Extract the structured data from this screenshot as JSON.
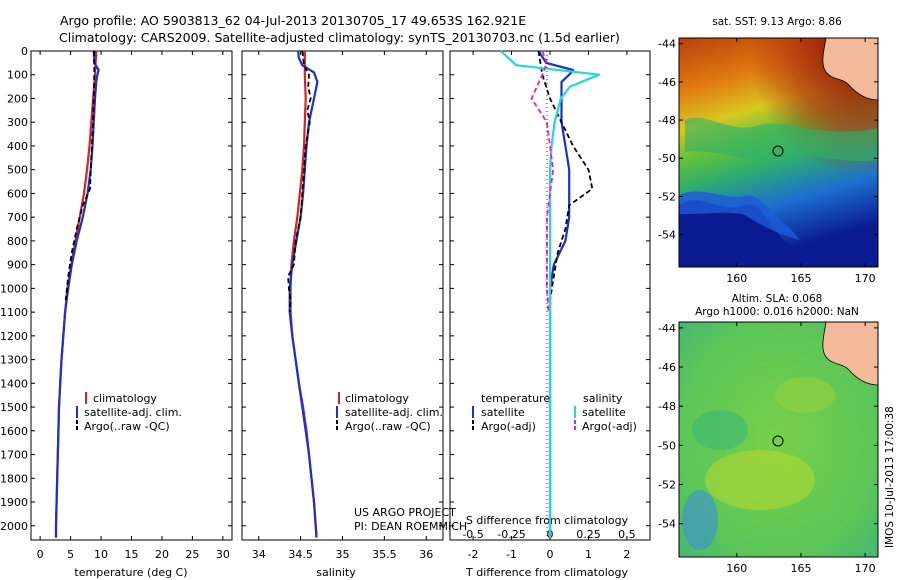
{
  "header": {
    "line1": "Argo profile: AO 5903813_62 04-Jul-2013 20130705_17 49.653S 162.921E",
    "line2": "Climatology: CARS2009. Satellite-adjusted climatology: synTS_20130703.nc (1.5d earlier)"
  },
  "colors": {
    "clim": "#e0201b",
    "sat": "#1a2fd6",
    "argo": "#000000",
    "sal_sat": "#22d8d8",
    "sal_argo": "#e020d8",
    "land": "#f2b99a"
  },
  "credits": {
    "project": "US ARGO PROJECT",
    "pi": "PI: DEAN ROEMMICH",
    "stamp": "IMOS 10-Jul-2013 17:00:38"
  },
  "chart_data": [
    {
      "type": "line",
      "name": "temperature",
      "xlabel": "temperature (deg C)",
      "xticks": [
        "0",
        "5",
        "10",
        "15",
        "20",
        "25",
        "30"
      ],
      "xlim": [
        -1.5,
        31.5
      ],
      "ylim": [
        0,
        2060
      ],
      "yreversed": true,
      "yticks": [
        "0",
        "100",
        "200",
        "300",
        "400",
        "500",
        "600",
        "700",
        "800",
        "900",
        "1000",
        "1100",
        "1200",
        "1300",
        "1400",
        "1500",
        "1600",
        "1700",
        "1800",
        "1900",
        "2000"
      ],
      "legend": [
        "climatology",
        "satellite-adj. clim.",
        "Argo(..raw -QC)"
      ],
      "series": [
        {
          "name": "climatology",
          "depth": [
            0,
            100,
            200,
            300,
            400,
            500,
            600,
            700,
            800,
            900,
            1000,
            1100,
            1200,
            1300,
            1400,
            1500,
            1600,
            1700,
            1800,
            1900,
            2000,
            2050
          ],
          "values": [
            9.2,
            9.0,
            8.7,
            8.4,
            8.1,
            7.7,
            7.2,
            6.5,
            5.8,
            5.1,
            4.5,
            4.1,
            3.8,
            3.5,
            3.3,
            3.1,
            3.0,
            2.9,
            2.8,
            2.7,
            2.6,
            2.6
          ]
        },
        {
          "name": "satellite-adj. clim.",
          "depth": [
            0,
            50,
            80,
            100,
            130,
            200,
            300,
            400,
            500,
            600,
            700,
            800,
            900,
            1000,
            1100,
            1200,
            1300,
            1400,
            1500,
            1600,
            1700,
            1800,
            1900,
            2000,
            2050
          ],
          "values": [
            8.8,
            8.9,
            9.6,
            9.4,
            9.2,
            9.0,
            8.8,
            8.6,
            8.3,
            7.8,
            7.0,
            6.0,
            5.2,
            4.6,
            4.1,
            3.8,
            3.5,
            3.3,
            3.1,
            3.0,
            2.9,
            2.8,
            2.7,
            2.6,
            2.6
          ]
        },
        {
          "name": "Argo(..raw -QC)",
          "depth": [
            0,
            100,
            200,
            300,
            400,
            500,
            580,
            650,
            750,
            850,
            950,
            1050
          ],
          "values": [
            8.9,
            8.9,
            8.8,
            8.7,
            8.5,
            8.3,
            8.2,
            7.0,
            6.0,
            5.2,
            4.6,
            4.2
          ]
        }
      ]
    },
    {
      "type": "line",
      "name": "salinity",
      "xlabel": "salinity",
      "xticks": [
        "34",
        "34.5",
        "35",
        "35.5",
        "36"
      ],
      "xlim": [
        33.8,
        36.2
      ],
      "ylim": [
        0,
        2060
      ],
      "yreversed": true,
      "legend": [
        "climatology",
        "satellite-adj. clim.",
        "Argo(..raw -QC)"
      ],
      "series": [
        {
          "name": "climatology",
          "depth": [
            0,
            100,
            200,
            300,
            400,
            500,
            600,
            700,
            800,
            900,
            1000,
            1100,
            1200,
            1300,
            1400,
            1500,
            1600,
            1700,
            1800,
            1900,
            2000,
            2050
          ],
          "values": [
            34.55,
            34.55,
            34.56,
            34.55,
            34.54,
            34.52,
            34.49,
            34.46,
            34.42,
            34.39,
            34.38,
            34.38,
            34.4,
            34.44,
            34.48,
            34.53,
            34.57,
            34.6,
            34.63,
            34.66,
            34.68,
            34.69
          ]
        },
        {
          "name": "satellite-adj. clim.",
          "depth": [
            0,
            30,
            60,
            90,
            130,
            200,
            300,
            400,
            500,
            600,
            700,
            800,
            900,
            1000,
            1100,
            1200,
            1300,
            1400,
            1500,
            1600,
            1700,
            1800,
            1900,
            2000,
            2050
          ],
          "values": [
            34.47,
            34.48,
            34.52,
            34.66,
            34.7,
            34.66,
            34.6,
            34.57,
            34.55,
            34.53,
            34.5,
            34.45,
            34.4,
            34.37,
            34.37,
            34.4,
            34.44,
            34.48,
            34.52,
            34.56,
            34.6,
            34.63,
            34.66,
            34.68,
            34.69
          ]
        },
        {
          "name": "Argo(..raw -QC)",
          "depth": [
            0,
            60,
            100,
            150,
            200,
            250,
            300,
            400,
            500,
            600,
            700,
            800,
            900,
            950,
            1000,
            1050,
            1100
          ],
          "values": [
            34.52,
            34.54,
            34.6,
            34.59,
            34.62,
            34.58,
            34.61,
            34.56,
            34.54,
            34.52,
            34.5,
            34.44,
            34.42,
            34.35,
            34.36,
            34.38,
            34.37
          ]
        }
      ]
    },
    {
      "type": "line",
      "name": "difference from climatology",
      "xlabel": "T difference from climatology",
      "x2label": "S difference from climatology",
      "xticks": [
        "-2",
        "-1",
        "0",
        "1",
        "2"
      ],
      "x2ticks": [
        "-0.5",
        "-0.25",
        "0",
        "0.25",
        "0.5"
      ],
      "xlim": [
        -2.6,
        2.6
      ],
      "ylim": [
        0,
        2060
      ],
      "yreversed": true,
      "legend_left_title": "temperature",
      "legend_right_title": "salinity",
      "legend_left": [
        "satellite",
        "Argo(-adj)"
      ],
      "legend_right": [
        "satellite",
        "Argo(-adj)"
      ],
      "series": [
        {
          "name": "T satellite",
          "depth": [
            0,
            50,
            80,
            100,
            130,
            200,
            300,
            400,
            500,
            600,
            700,
            800,
            900,
            1000,
            1200,
            1400,
            1600,
            1800,
            2000,
            2050
          ],
          "values": [
            -0.3,
            -0.1,
            0.6,
            0.5,
            0.3,
            0.3,
            0.3,
            0.4,
            0.5,
            0.5,
            0.5,
            0.4,
            0.1,
            0.0,
            0.0,
            0.0,
            0.0,
            0.0,
            0.0,
            0.0
          ]
        },
        {
          "name": "T Argo(-adj)",
          "depth": [
            0,
            100,
            200,
            300,
            400,
            500,
            580,
            650,
            750,
            850,
            950,
            1050
          ],
          "values": [
            -0.3,
            -0.2,
            0.0,
            0.3,
            0.6,
            1.0,
            1.1,
            0.5,
            0.4,
            0.2,
            0.1,
            0.0
          ]
        },
        {
          "name": "S satellite",
          "depth": [
            0,
            60,
            100,
            150,
            200,
            300,
            400,
            500,
            600,
            800,
            1000,
            1200,
            1400,
            1600,
            1800,
            2000,
            2050
          ],
          "values": [
            -0.32,
            -0.22,
            0.32,
            0.13,
            0.07,
            0.03,
            0.01,
            0.0,
            0.0,
            0.0,
            0.0,
            0.0,
            0.0,
            0.0,
            0.0,
            0.0,
            0.0
          ]
        },
        {
          "name": "S Argo(-adj)",
          "depth": [
            0,
            50,
            100,
            200,
            300,
            400,
            500,
            600,
            700,
            800,
            900,
            1000,
            1100
          ],
          "values": [
            -0.05,
            -0.02,
            -0.05,
            -0.12,
            -0.02,
            0.0,
            0.02,
            0.0,
            -0.02,
            -0.02,
            -0.02,
            -0.02,
            -0.01
          ]
        }
      ]
    },
    {
      "type": "heatmap",
      "name": "sst map",
      "title": "sat. SST: 9.13 Argo: 8.86",
      "xticks": [
        "160",
        "165",
        "170"
      ],
      "yticks": [
        "-44",
        "-46",
        "-48",
        "-50",
        "-52",
        "-54"
      ],
      "xlim": [
        155.5,
        171
      ],
      "ylim": [
        -55.7,
        -43.7
      ],
      "marker": {
        "lon": 162.921,
        "lat": -49.653
      }
    },
    {
      "type": "heatmap",
      "name": "sla map",
      "title": "Altim. SLA: 0.068",
      "subtitle": "Argo h1000: 0.016 h2000: NaN",
      "xticks": [
        "160",
        "165",
        "170"
      ],
      "yticks": [
        "-44",
        "-46",
        "-48",
        "-50",
        "-52",
        "-54"
      ],
      "xlim": [
        155.5,
        171
      ],
      "ylim": [
        -55.7,
        -43.7
      ],
      "marker": {
        "lon": 162.921,
        "lat": -49.653
      }
    }
  ]
}
